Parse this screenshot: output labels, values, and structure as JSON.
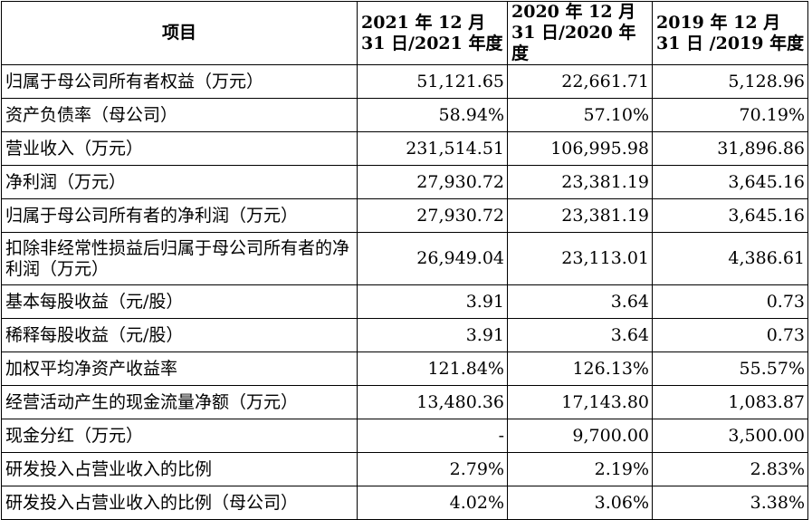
{
  "table": {
    "headers": {
      "item": "项目",
      "col2021": "2021 年 12 月 31 日/2021 年度",
      "col2020": "2020 年 12 月 31 日/2020 年度",
      "col2019": "2019 年 12 月 31 日 /2019 年度"
    },
    "rows": [
      {
        "label": "归属于母公司所有者权益（万元）",
        "v2021": "51,121.65",
        "v2020": "22,661.71",
        "v2019": "5,128.96"
      },
      {
        "label": "资产负债率（母公司）",
        "v2021": "58.94%",
        "v2020": "57.10%",
        "v2019": "70.19%"
      },
      {
        "label": "营业收入（万元）",
        "v2021": "231,514.51",
        "v2020": "106,995.98",
        "v2019": "31,896.86"
      },
      {
        "label": "净利润（万元）",
        "v2021": "27,930.72",
        "v2020": "23,381.19",
        "v2019": "3,645.16"
      },
      {
        "label": "归属于母公司所有者的净利润（万元）",
        "v2021": "27,930.72",
        "v2020": "23,381.19",
        "v2019": "3,645.16"
      },
      {
        "label": "扣除非经常性损益后归属于母公司所有者的净利润（万元）",
        "v2021": "26,949.04",
        "v2020": "23,113.01",
        "v2019": "4,386.61"
      },
      {
        "label": "基本每股收益（元/股）",
        "v2021": "3.91",
        "v2020": "3.64",
        "v2019": "0.73"
      },
      {
        "label": "稀释每股收益（元/股）",
        "v2021": "3.91",
        "v2020": "3.64",
        "v2019": "0.73"
      },
      {
        "label": "加权平均净资产收益率",
        "v2021": "121.84%",
        "v2020": "126.13%",
        "v2019": "55.57%"
      },
      {
        "label": "经营活动产生的现金流量净额（万元）",
        "v2021": "13,480.36",
        "v2020": "17,143.80",
        "v2019": "1,083.87"
      },
      {
        "label": "现金分红（万元）",
        "v2021": "-",
        "v2020": "9,700.00",
        "v2019": "3,500.00"
      },
      {
        "label": "研发投入占营业收入的比例",
        "v2021": "2.79%",
        "v2020": "2.19%",
        "v2019": "2.83%"
      },
      {
        "label": "研发投入占营业收入的比例（母公司）",
        "v2021": "4.02%",
        "v2020": "3.06%",
        "v2019": "3.38%"
      }
    ]
  }
}
